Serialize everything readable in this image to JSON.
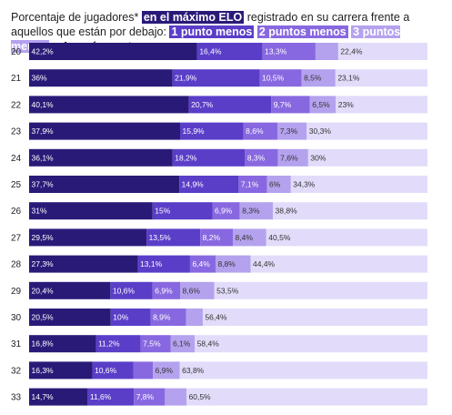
{
  "subtitle": {
    "pre": "Porcentaje de jugadores*",
    "hl_peak": "en el máximo ELO",
    "mid": "registrado en su carrera frente a aquellos que están por debajo:",
    "hl_1": "1 punto menos",
    "hl_2": "2 puntos menos",
    "hl_3": "3 puntos menos",
    "and": "y",
    "hl_4": "4 o más puntos menos",
    "end": "."
  },
  "colors": {
    "peak": "#2a1a78",
    "one_less": "#5a3ec8",
    "two_less": "#8868e0",
    "three_less": "#b4a2ee",
    "four_plus": "#e2dcfa"
  },
  "chart_data": {
    "type": "bar",
    "stacked": true,
    "orientation": "horizontal",
    "unit": "%",
    "categories": [
      "20",
      "21",
      "22",
      "23",
      "24",
      "25",
      "26",
      "27",
      "28",
      "29",
      "30",
      "31",
      "32",
      "33"
    ],
    "series": [
      {
        "name": "en el máximo ELO",
        "label_color": "#ffffff",
        "values": [
          42.2,
          36,
          40.1,
          37.9,
          36.1,
          37.7,
          31,
          29.5,
          27.3,
          20.4,
          20.5,
          16.8,
          16.3,
          14.7
        ],
        "labels": [
          "42,2%",
          "36%",
          "40,1%",
          "37,9%",
          "36,1%",
          "37,7%",
          "31%",
          "29,5%",
          "27,3%",
          "20,4%",
          "20,5%",
          "16,8%",
          "16,3%",
          "14,7%"
        ]
      },
      {
        "name": "1 punto menos",
        "label_color": "#ffffff",
        "values": [
          16.4,
          21.9,
          20.7,
          15.9,
          18.2,
          14.9,
          15,
          13.5,
          13.1,
          10.6,
          10,
          11.2,
          10.6,
          11.6
        ],
        "labels": [
          "16,4%",
          "21,9%",
          "20,7%",
          "15,9%",
          "18,2%",
          "14,9%",
          "15%",
          "13,5%",
          "13,1%",
          "10,6%",
          "10%",
          "11,2%",
          "10,6%",
          "11,6%"
        ]
      },
      {
        "name": "2 puntos menos",
        "label_color": "#ffffff",
        "values": [
          13.3,
          10.5,
          9.7,
          8.6,
          8.3,
          7.1,
          6.9,
          8.2,
          6.4,
          6.9,
          8.9,
          7.5,
          5,
          7.8
        ],
        "labels": [
          "13,3%",
          "10,5%",
          "9,7%",
          "8,6%",
          "8,3%",
          "7,1%",
          "6,9%",
          "8,2%",
          "6,4%",
          "6,9%",
          "8,9%",
          "7,5%",
          "",
          "7,8%"
        ]
      },
      {
        "name": "3 puntos menos",
        "label_color": "#333333",
        "values": [
          5.7,
          8.5,
          6.5,
          7.3,
          7.6,
          6,
          8.3,
          8.4,
          8.8,
          8.6,
          4.2,
          6.1,
          6.9,
          5.4
        ],
        "labels": [
          "",
          "8,5%",
          "6,5%",
          "7,3%",
          "7,6%",
          "6%",
          "8,3%",
          "8,4%",
          "8,8%",
          "8,6%",
          "",
          "6,1%",
          "6,9%",
          ""
        ]
      },
      {
        "name": "4 o más puntos menos",
        "label_color": "#333333",
        "values": [
          22.4,
          23.1,
          23,
          30.3,
          30,
          34.3,
          38.8,
          40.5,
          44.4,
          53.5,
          56.4,
          58.4,
          63.8,
          60.5
        ],
        "labels": [
          "22,4%",
          "23,1%",
          "23%",
          "30,3%",
          "30%",
          "34,3%",
          "38,8%",
          "40,5%",
          "44,4%",
          "53,5%",
          "56,4%",
          "58,4%",
          "63,8%",
          "60,5%"
        ]
      }
    ]
  }
}
